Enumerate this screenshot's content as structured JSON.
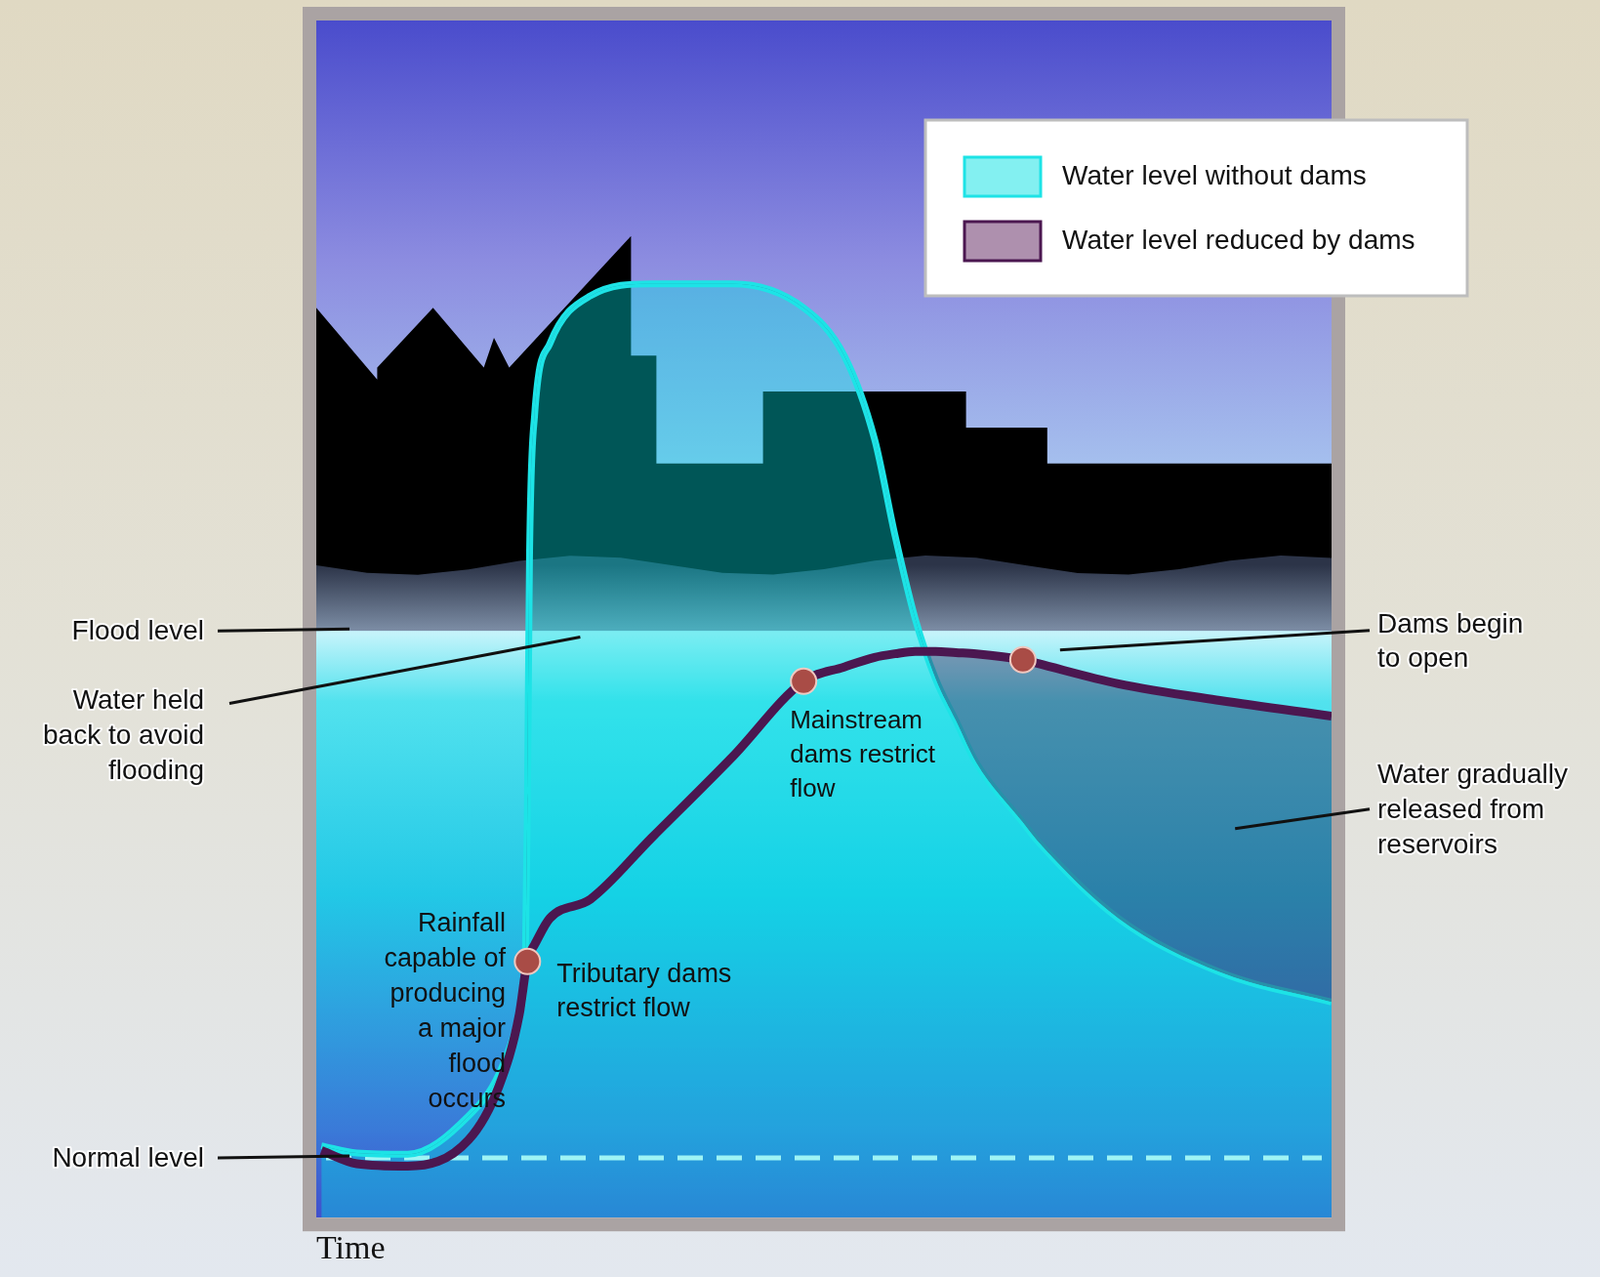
{
  "chart_data": {
    "type": "line",
    "x_label": "Time",
    "x": [
      0.5,
      4,
      9,
      15,
      18,
      20,
      20.6,
      20.8,
      21,
      21.5,
      23,
      27,
      33,
      41,
      48,
      52,
      55,
      57,
      59,
      61,
      63,
      65,
      69.6,
      71,
      79,
      89,
      100
    ],
    "series": [
      {
        "name": "Water level without dams",
        "color": "#1de3e6",
        "values": [
          6,
          5.4,
          5.3,
          8.5,
          12,
          17,
          22,
          35,
          55,
          67,
          73,
          77,
          78,
          78,
          76,
          72,
          65,
          57,
          50,
          45,
          41.5,
          38,
          33,
          31.5,
          25,
          20.5,
          18
        ]
      },
      {
        "name": "Water level reduced by dams",
        "color": "#4b1750",
        "values": [
          5.6,
          4.5,
          4.3,
          6.5,
          11,
          17,
          20.5,
          21.4,
          22,
          22.8,
          25,
          26.6,
          31.7,
          38.5,
          44.8,
          46,
          46.8,
          47.1,
          47.3,
          47.3,
          47.2,
          47.1,
          46.6,
          46.3,
          44.6,
          43.2,
          41.9
        ]
      }
    ],
    "xlim": [
      0,
      100
    ],
    "ylim": [
      0,
      100
    ],
    "tick_labels": false,
    "grid": false,
    "legend": "top right",
    "reference_lines": [
      {
        "label": "Flood level",
        "value": 49
      },
      {
        "label": "Normal level",
        "value": 5
      }
    ],
    "markers": [
      {
        "label": "Tributary dams restrict flow",
        "x": 20.8,
        "y": 21.4
      },
      {
        "label": "Mainstream dams restrict flow",
        "x": 48,
        "y": 44.8
      },
      {
        "label": "Dams begin to open",
        "x": 69.6,
        "y": 46.6
      }
    ],
    "annotations": [
      {
        "text": "Rainfall capable of producing a major flood occurs",
        "x": 20,
        "y": 17
      },
      {
        "text": "Water held back to avoid flooding",
        "x": 26,
        "y": 48.5
      },
      {
        "text": "Water gradually released from reservoirs",
        "x": 90.5,
        "y": 32.5
      }
    ]
  }
}
